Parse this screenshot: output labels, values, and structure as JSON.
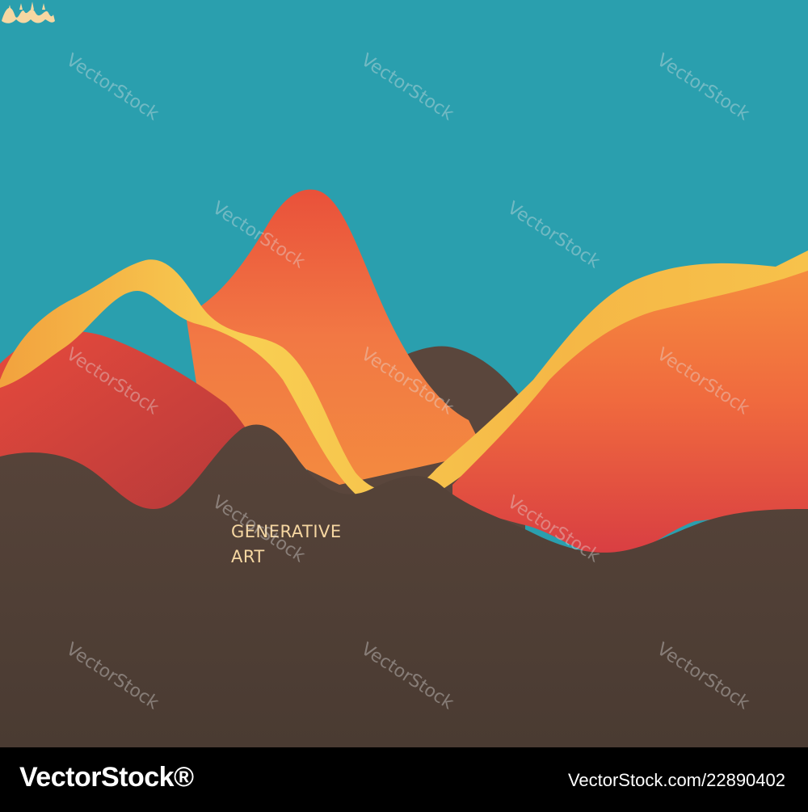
{
  "art": {
    "title_line1": "GENERATIVE",
    "title_line2": "ART",
    "colors": {
      "sky": "#2a9fae",
      "ground": "#4c3d33",
      "orange": "#f06a3c",
      "yellow": "#f6c94e",
      "red": "#d43a3e",
      "text": "#f6d7a2"
    }
  },
  "watermark": {
    "text": "VectorStock"
  },
  "footer": {
    "brand": "VectorStock®",
    "image_id": "VectorStock.com/22890402"
  }
}
